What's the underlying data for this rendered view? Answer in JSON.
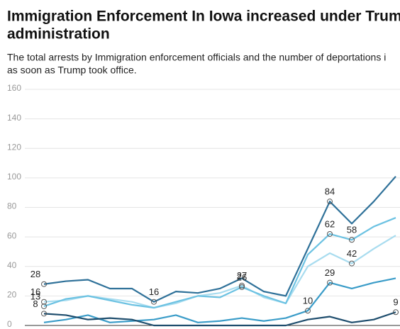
{
  "chart_data": {
    "type": "line",
    "title_lines": [
      "Immigration Enforcement In Iowa increased under Trum",
      "administration"
    ],
    "subtitle_lines": [
      "The total arrests by Immigration enforcement officials and the number of deportations i",
      "as soon as Trump took office."
    ],
    "categories": [
      null,
      null,
      null,
      null,
      null,
      null,
      null,
      null,
      null,
      null,
      null,
      null,
      null,
      null,
      null,
      null,
      null
    ],
    "ylim": [
      0,
      160
    ],
    "yticks": [
      0,
      20,
      40,
      60,
      80,
      100,
      120,
      140,
      160
    ],
    "grid": true,
    "series": [
      {
        "color": "#2f7199",
        "values": [
          28,
          30,
          31,
          25,
          25,
          16,
          23,
          22,
          25,
          32,
          23,
          20,
          52,
          84,
          69,
          84,
          101
        ],
        "value_labels": [
          "28",
          null,
          null,
          null,
          null,
          "16",
          null,
          null,
          null,
          null,
          null,
          null,
          null,
          "84",
          null,
          null,
          null
        ]
      },
      {
        "color": "#a8dcef",
        "values": [
          16,
          17,
          20,
          18,
          16,
          12,
          15,
          20,
          22,
          27,
          19,
          15,
          40,
          49,
          42,
          52,
          61
        ],
        "value_labels": [
          "16",
          null,
          null,
          null,
          null,
          null,
          null,
          null,
          null,
          "27",
          null,
          null,
          null,
          null,
          "42",
          null,
          null
        ]
      },
      {
        "color": "#6cc2e2",
        "values": [
          13,
          18,
          20,
          17,
          14,
          12,
          16,
          20,
          19,
          26,
          20,
          15,
          48,
          62,
          58,
          67,
          73
        ],
        "value_labels": [
          "13",
          null,
          null,
          null,
          null,
          null,
          null,
          null,
          null,
          "26",
          null,
          null,
          null,
          "62",
          "58",
          null,
          null
        ]
      },
      {
        "color": "#3a9cc8",
        "values": [
          2,
          4,
          7,
          2,
          3,
          4,
          7,
          2,
          3,
          5,
          3,
          5,
          10,
          29,
          25,
          29,
          32
        ],
        "value_labels": [
          null,
          null,
          null,
          null,
          null,
          null,
          null,
          null,
          null,
          null,
          null,
          null,
          "10",
          "29",
          null,
          null,
          null
        ]
      },
      {
        "color": "#1e4d6d",
        "values": [
          8,
          7,
          4,
          5,
          4,
          0,
          0,
          0,
          0,
          0,
          0,
          0,
          4,
          6,
          2,
          4,
          9
        ],
        "value_labels": [
          "8",
          null,
          null,
          null,
          null,
          null,
          null,
          null,
          null,
          null,
          null,
          null,
          null,
          null,
          null,
          null,
          "9"
        ]
      }
    ]
  }
}
